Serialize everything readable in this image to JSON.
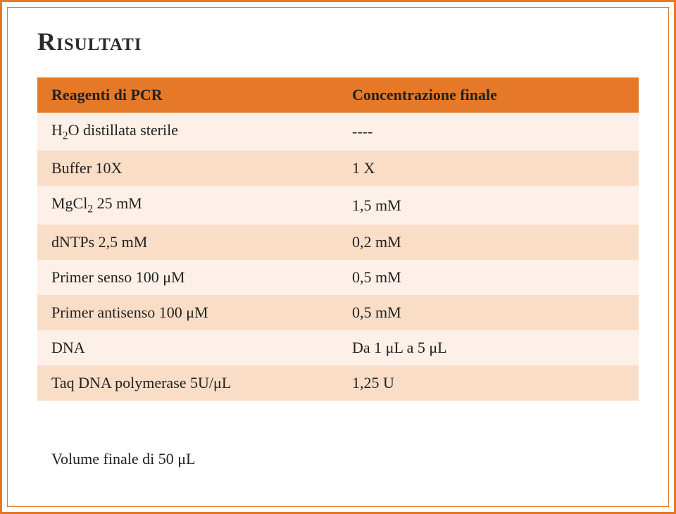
{
  "title": "Risultati",
  "table": {
    "header": {
      "left": "Reagenti di PCR",
      "right": "Concentrazione finale"
    },
    "rows": [
      {
        "left_html": "H<span class=\"sub2\">2</span>O distillata sterile",
        "right": "----"
      },
      {
        "left_html": "Buffer 10X",
        "right": "1 X"
      },
      {
        "left_html": "MgCl<span class=\"sub2\">2</span> 25 mM",
        "right": "1,5 mM"
      },
      {
        "left_html": "dNTPs 2,5 mM",
        "right": "0,2 mM"
      },
      {
        "left_html": "Primer senso 100 μM",
        "right": "0,5 mM"
      },
      {
        "left_html": "Primer antisenso 100 μM",
        "right": "0,5 mM"
      },
      {
        "left_html": "DNA",
        "right": "Da 1 μL a 5 μL"
      },
      {
        "left_html": "Taq DNA polymerase 5U/μL",
        "right": "1,25 U"
      }
    ],
    "header_bg": "#e57928",
    "light_bg": "#fdf0e8",
    "dark_bg": "#f9ddc7",
    "text_color": "#222222",
    "fontsize": 22
  },
  "volume_note": "Volume finale di 50 μL"
}
